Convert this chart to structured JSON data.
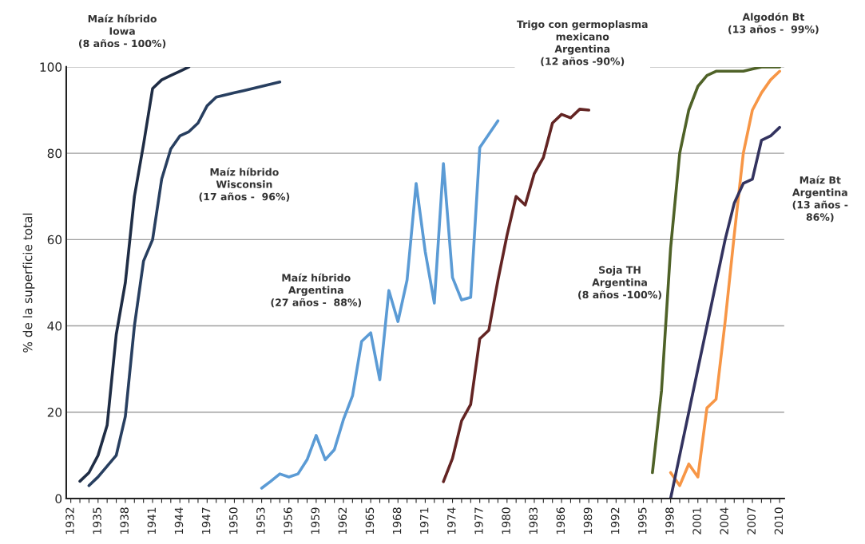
{
  "chart_data": {
    "type": "line",
    "ylabel": "% de la superficie total",
    "ylim": [
      0,
      100
    ],
    "yticks": [
      0,
      20,
      40,
      60,
      80,
      100
    ],
    "xlim": [
      1931.5,
      2010.5
    ],
    "xticks": [
      1932,
      {
        "value": 1933,
        "label": null
      },
      {
        "value": 1934,
        "label": null
      },
      1935,
      {
        "value": 1936,
        "label": null
      },
      {
        "value": 1937,
        "label": null
      },
      1938,
      {
        "value": 1939,
        "label": null
      },
      {
        "value": 1940,
        "label": null
      },
      1941,
      {
        "value": 1942,
        "label": null
      },
      {
        "value": 1943,
        "label": null
      },
      1944,
      {
        "value": 1945,
        "label": null
      },
      {
        "value": 1946,
        "label": null
      },
      1947,
      {
        "value": 1948,
        "label": null
      },
      {
        "value": 1949,
        "label": null
      },
      1950,
      {
        "value": 1951,
        "label": null
      },
      {
        "value": 1952,
        "label": null
      },
      1953,
      {
        "value": 1954,
        "label": null
      },
      {
        "value": 1955,
        "label": null
      },
      1956,
      {
        "value": 1957,
        "label": null
      },
      {
        "value": 1958,
        "label": null
      },
      1959,
      {
        "value": 1960,
        "label": null
      },
      {
        "value": 1961,
        "label": null
      },
      1962,
      {
        "value": 1963,
        "label": null
      },
      {
        "value": 1964,
        "label": null
      },
      1965,
      {
        "value": 1966,
        "label": null
      },
      {
        "value": 1967,
        "label": null
      },
      1968,
      {
        "value": 1969,
        "label": null
      },
      {
        "value": 1970,
        "label": null
      },
      1971,
      {
        "value": 1972,
        "label": null
      },
      {
        "value": 1973,
        "label": null
      },
      1974,
      {
        "value": 1975,
        "label": null
      },
      {
        "value": 1976,
        "label": null
      },
      1977,
      {
        "value": 1978,
        "label": null
      },
      {
        "value": 1979,
        "label": null
      },
      1980,
      {
        "value": 1981,
        "label": null
      },
      {
        "value": 1982,
        "label": null
      },
      1983,
      {
        "value": 1984,
        "label": null
      },
      {
        "value": 1985,
        "label": null
      },
      1986,
      {
        "value": 1987,
        "label": null
      },
      {
        "value": 1988,
        "label": null
      },
      1989,
      {
        "value": 1990,
        "label": null
      },
      {
        "value": 1991,
        "label": null
      },
      1992,
      {
        "value": 1993,
        "label": null
      },
      {
        "value": 1994,
        "label": null
      },
      1995,
      {
        "value": 1996,
        "label": null
      },
      {
        "value": 1997,
        "label": null
      },
      1998,
      {
        "value": 1999,
        "label": null
      },
      {
        "value": 2000,
        "label": null
      },
      2001,
      {
        "value": 2002,
        "label": null
      },
      {
        "value": 2003,
        "label": null
      },
      2004,
      {
        "value": 2005,
        "label": null
      },
      {
        "value": 2006,
        "label": null
      },
      2007,
      {
        "value": 2008,
        "label": null
      },
      {
        "value": 2009,
        "label": null
      },
      2010
    ],
    "grid": "y",
    "legend": false,
    "marker": "none",
    "line_style": "solid",
    "series": [
      {
        "color": "#1f2d45",
        "x": [
          1933,
          1934,
          1935,
          1936,
          1937,
          1938,
          1939,
          1940,
          1941,
          1942,
          1943,
          1944,
          1945
        ],
        "values": [
          4,
          6,
          10,
          17,
          38,
          50,
          70,
          82,
          95,
          97,
          98,
          99,
          100
        ]
      },
      {
        "color": "#283f60",
        "x": [
          1934,
          1935,
          1936,
          1937,
          1938,
          1939,
          1940,
          1941,
          1942,
          1943,
          1944,
          1945,
          1946,
          1947,
          1948,
          1949,
          1950,
          1951,
          1952,
          1953,
          1954,
          1955
        ],
        "values": [
          3,
          5,
          7.5,
          10,
          19,
          40,
          55,
          60,
          74,
          81,
          84,
          85,
          87,
          91,
          93,
          93.5,
          94,
          94.5,
          95,
          95.5,
          96,
          96.5
        ]
      },
      {
        "color": "#5b9bd5",
        "x": [
          1953,
          1954,
          1955,
          1956,
          1957,
          1958,
          1959,
          1960,
          1961,
          1962,
          1963,
          1964,
          1965,
          1966,
          1967,
          1968,
          1969,
          1970,
          1971,
          1972,
          1973,
          1974,
          1975,
          1976,
          1977,
          1978,
          1979
        ],
        "values": [
          2.4,
          4,
          5.7,
          5,
          5.7,
          9,
          14.6,
          9,
          11.3,
          18.3,
          23.8,
          36.4,
          38.4,
          27.5,
          48.2,
          41,
          50.6,
          73,
          57.2,
          45.3,
          77.6,
          51.2,
          46,
          46.6,
          81.3,
          84.4,
          87.5
        ]
      },
      {
        "color": "#632423",
        "x": [
          1973,
          1974,
          1975,
          1976,
          1977,
          1978,
          1979,
          1980,
          1981,
          1982,
          1983,
          1984,
          1985,
          1986,
          1987,
          1988,
          1989
        ],
        "values": [
          3.9,
          9.3,
          18,
          21.8,
          37,
          39,
          50.6,
          61,
          70,
          68,
          75.3,
          79,
          87,
          89,
          88.2,
          90.2,
          90
        ]
      },
      {
        "color": "#4f6228",
        "x": [
          1996,
          1997,
          1998,
          1999,
          2000,
          2001,
          2002,
          2003,
          2004,
          2005,
          2006,
          2007,
          2008,
          2009,
          2010
        ],
        "values": [
          6,
          25,
          58,
          80,
          90,
          95.5,
          98,
          99,
          99,
          99,
          99,
          99.5,
          100,
          100,
          100
        ]
      },
      {
        "color": "#f79646",
        "x": [
          1998,
          1999,
          2000,
          2001,
          2002,
          2003,
          2004,
          2005,
          2006,
          2007,
          2008,
          2009,
          2010
        ],
        "values": [
          6,
          3,
          8,
          5,
          21,
          23,
          41,
          61,
          80,
          90,
          94,
          97,
          99
        ]
      },
      {
        "color": "#33335f",
        "x": [
          1998,
          1999,
          2000,
          2001,
          2002,
          2003,
          2004,
          2005,
          2006,
          2007,
          2008,
          2009,
          2010
        ],
        "values": [
          0,
          10,
          20,
          30,
          40,
          50,
          60,
          68.4,
          73,
          74,
          83,
          84,
          86
        ]
      }
    ],
    "annotations": [
      "Maíz híbrido\nIowa\n(8 años - 100%)",
      "Maíz híbrido\nWisconsin\n(17 años -  96%)",
      "Maíz híbrido\nArgentina\n(27 años -  88%)",
      "Trigo con germoplasma\nmexicano\nArgentina\n(12 años -90%)",
      "Soja TH\nArgentina\n(8 años -100%)",
      "Algodón Bt\n(13 años -  99%)",
      "Maíz Bt\nArgentina\n(13 años -\n86%)"
    ]
  }
}
